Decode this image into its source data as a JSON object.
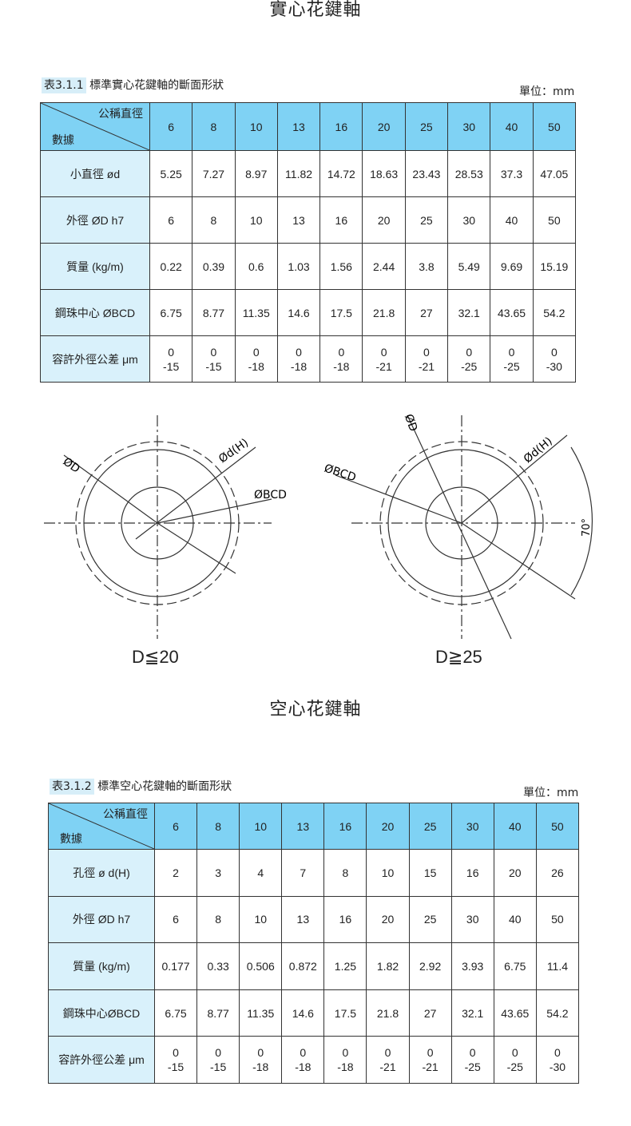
{
  "solid": {
    "title": "實心花鍵軸",
    "caption_num": "表3.1.1",
    "caption": "標準實心花鍵軸的斷面形狀",
    "unit": "單位：mm",
    "corner_top": "公稱直徑",
    "corner_bottom": "數據",
    "sizes": [
      "6",
      "8",
      "10",
      "13",
      "16",
      "20",
      "25",
      "30",
      "40",
      "50"
    ],
    "rows": [
      {
        "label": "小直徑 ød",
        "values": [
          "5.25",
          "7.27",
          "8.97",
          "11.82",
          "14.72",
          "18.63",
          "23.43",
          "28.53",
          "37.3",
          "47.05"
        ]
      },
      {
        "label": "外徑 ØD h7",
        "values": [
          "6",
          "8",
          "10",
          "13",
          "16",
          "20",
          "25",
          "30",
          "40",
          "50"
        ]
      },
      {
        "label": "質量 (kg/m)",
        "values": [
          "0.22",
          "0.39",
          "0.6",
          "1.03",
          "1.56",
          "2.44",
          "3.8",
          "5.49",
          "9.69",
          "15.19"
        ]
      },
      {
        "label": "鋼珠中心 ØBCD",
        "values": [
          "6.75",
          "8.77",
          "11.35",
          "14.6",
          "17.5",
          "21.8",
          "27",
          "32.1",
          "43.65",
          "54.2"
        ]
      },
      {
        "label": "容許外徑公差 μm",
        "values": [
          "0\n-15",
          "0\n-15",
          "0\n-18",
          "0\n-18",
          "0\n-18",
          "0\n-21",
          "0\n-21",
          "0\n-25",
          "0\n-25",
          "0\n-30"
        ]
      }
    ]
  },
  "diagrams": {
    "left": {
      "label": "D≦20",
      "od": "ØD",
      "idh": "Ød(H)",
      "bcd": "ØBCD"
    },
    "right": {
      "label": "D≧25",
      "od": "ØD",
      "idh": "Ød(H)",
      "bcd": "ØBCD",
      "angle": "70°"
    }
  },
  "hollow": {
    "title": "空心花鍵軸",
    "caption_num": "表3.1.2",
    "caption": "標準空心花鍵軸的斷面形狀",
    "unit": "單位：mm",
    "corner_top": "公稱直徑",
    "corner_bottom": "數據",
    "sizes": [
      "6",
      "8",
      "10",
      "13",
      "16",
      "20",
      "25",
      "30",
      "40",
      "50"
    ],
    "rows": [
      {
        "label": "孔徑 ø d(H)",
        "values": [
          "2",
          "3",
          "4",
          "7",
          "8",
          "10",
          "15",
          "16",
          "20",
          "26"
        ]
      },
      {
        "label": "外徑 ØD h7",
        "values": [
          "6",
          "8",
          "10",
          "13",
          "16",
          "20",
          "25",
          "30",
          "40",
          "50"
        ]
      },
      {
        "label": "質量 (kg/m)",
        "values": [
          "0.177",
          "0.33",
          "0.506",
          "0.872",
          "1.25",
          "1.82",
          "2.92",
          "3.93",
          "6.75",
          "11.4"
        ]
      },
      {
        "label": "鋼珠中心ØBCD",
        "values": [
          "6.75",
          "8.77",
          "11.35",
          "14.6",
          "17.5",
          "21.8",
          "27",
          "32.1",
          "43.65",
          "54.2"
        ]
      },
      {
        "label": "容許外徑公差 μm",
        "values": [
          "0\n-15",
          "0\n-15",
          "0\n-18",
          "0\n-18",
          "0\n-18",
          "0\n-21",
          "0\n-21",
          "0\n-25",
          "0\n-25",
          "0\n-30"
        ]
      }
    ]
  }
}
